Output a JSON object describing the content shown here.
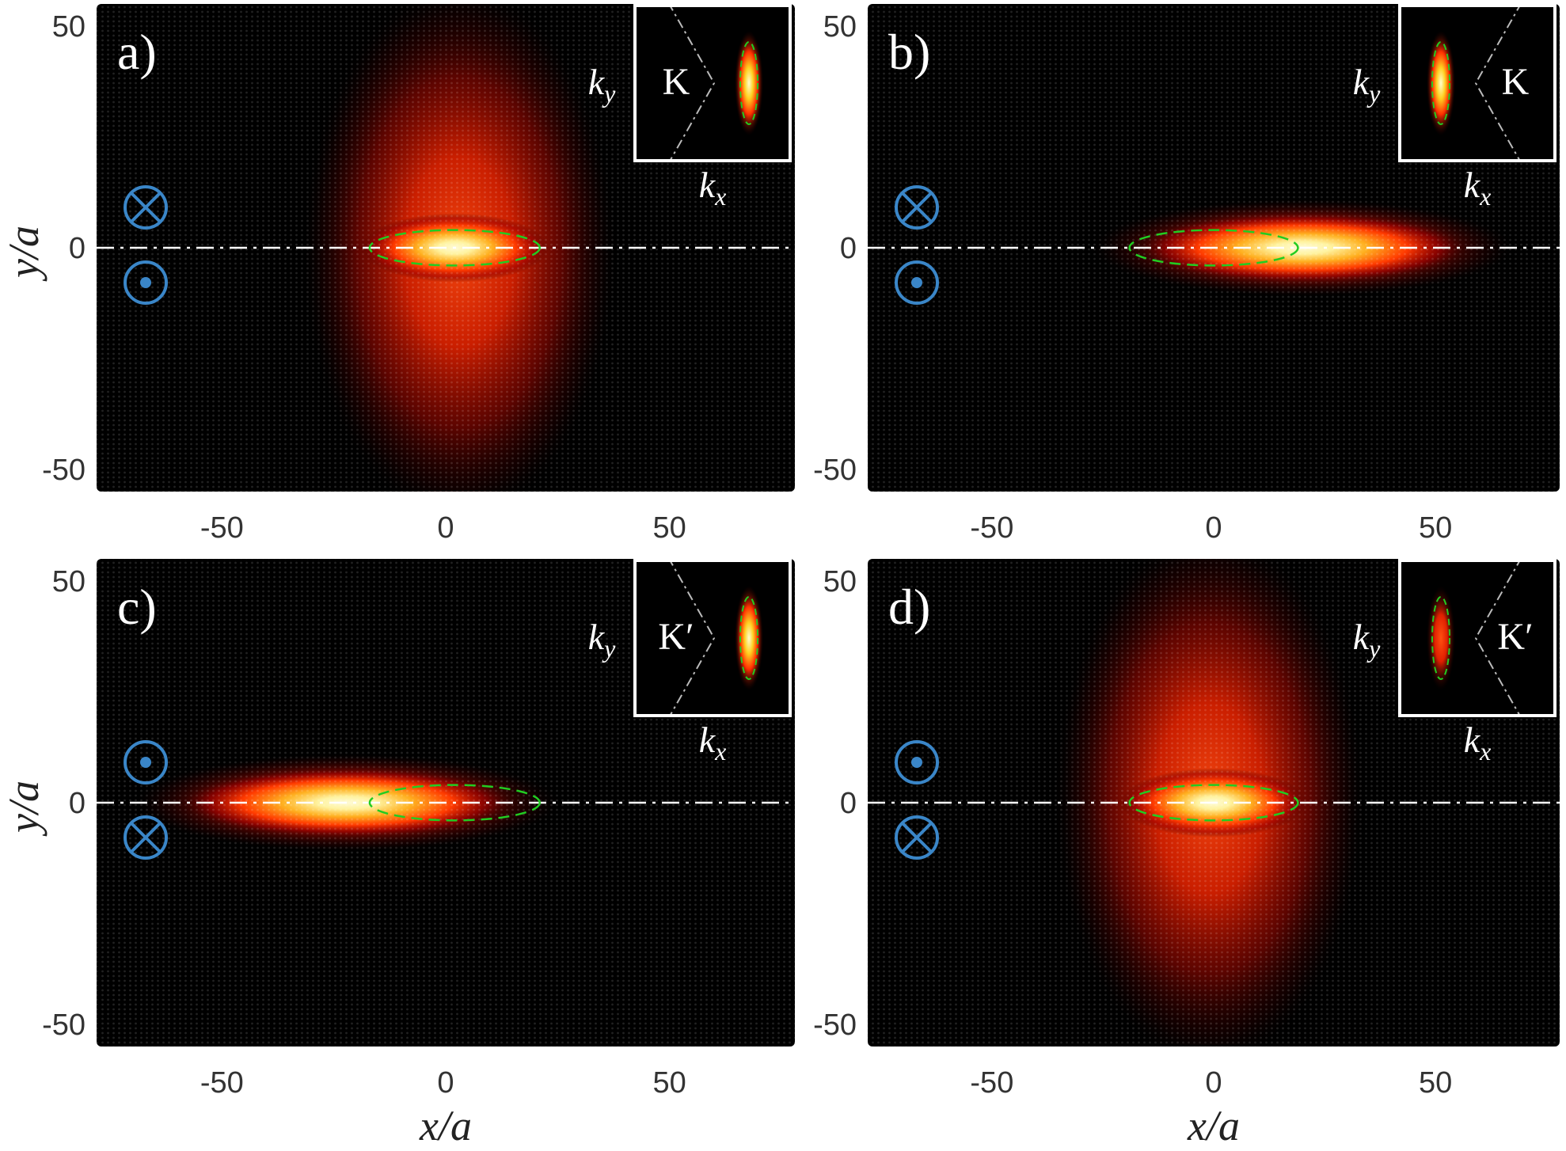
{
  "figure": {
    "x_axis_label": "x/a",
    "y_axis_label": "y/a",
    "inset_kx_label": "k_x",
    "inset_ky_label": "k_y",
    "colors": {
      "background": "#000000",
      "peak": "#fff9c8",
      "glow": "#ff2000",
      "ellipse": "#22cc22",
      "guide_line": "#ffffff",
      "spin_symbol": "#3a86c8"
    }
  },
  "chart_data": [
    {
      "type": "heatmap",
      "panel_label": "a)",
      "xlim": [
        -78,
        78
      ],
      "ylim": [
        -55,
        55
      ],
      "x_ticks": [
        "-50",
        "0",
        "50"
      ],
      "y_ticks": [
        "50",
        "0",
        "-50"
      ],
      "valley_label": "K",
      "spin_symbols": {
        "upper": "into",
        "lower": "out"
      },
      "ellipse": {
        "cx": 2,
        "cy": 0,
        "rx": 19,
        "ry": 4
      },
      "core": {
        "cx": 2,
        "cy": 0,
        "sx": 15,
        "sy": 3
      },
      "halo": {
        "cx": 3,
        "cy": -1,
        "sx": 22,
        "sy": 38
      },
      "inset": {
        "valley_side": "left",
        "spot": "right-bright"
      }
    },
    {
      "type": "heatmap",
      "panel_label": "b)",
      "xlim": [
        -78,
        78
      ],
      "ylim": [
        -55,
        55
      ],
      "x_ticks": [
        "-50",
        "0",
        "50"
      ],
      "y_ticks": [
        "50",
        "0",
        "-50"
      ],
      "valley_label": "K",
      "spin_symbols": {
        "upper": "into",
        "lower": "out"
      },
      "ellipse": {
        "cx": 0,
        "cy": 0,
        "rx": 19,
        "ry": 4
      },
      "core": {
        "cx": 20,
        "cy": 0,
        "sx": 26,
        "sy": 3
      },
      "halo": {
        "cx": 20,
        "cy": 0,
        "sx": 30,
        "sy": 7
      },
      "inset": {
        "valley_side": "right",
        "spot": "left-bright"
      }
    },
    {
      "type": "heatmap",
      "panel_label": "c)",
      "xlim": [
        -78,
        78
      ],
      "ylim": [
        -55,
        55
      ],
      "x_ticks": [
        "-50",
        "0",
        "50"
      ],
      "y_ticks": [
        "50",
        "0",
        "-50"
      ],
      "valley_label": "K′",
      "spin_symbols": {
        "upper": "out",
        "lower": "into"
      },
      "ellipse": {
        "cx": 2,
        "cy": 0,
        "rx": 19,
        "ry": 4
      },
      "core": {
        "cx": -22,
        "cy": 0,
        "sx": 26,
        "sy": 3
      },
      "halo": {
        "cx": -22,
        "cy": 0,
        "sx": 30,
        "sy": 7
      },
      "inset": {
        "valley_side": "left",
        "spot": "right-bright"
      }
    },
    {
      "type": "heatmap",
      "panel_label": "d)",
      "xlim": [
        -78,
        78
      ],
      "ylim": [
        -55,
        55
      ],
      "x_ticks": [
        "-50",
        "0",
        "50"
      ],
      "y_ticks": [
        "50",
        "0",
        "-50"
      ],
      "valley_label": "K′",
      "spin_symbols": {
        "upper": "out",
        "lower": "into"
      },
      "ellipse": {
        "cx": 0,
        "cy": 0,
        "rx": 19,
        "ry": 4
      },
      "core": {
        "cx": 0,
        "cy": 0,
        "sx": 15,
        "sy": 3
      },
      "halo": {
        "cx": -1,
        "cy": 1,
        "sx": 22,
        "sy": 38
      },
      "inset": {
        "valley_side": "right",
        "spot": "left-dim"
      }
    }
  ]
}
